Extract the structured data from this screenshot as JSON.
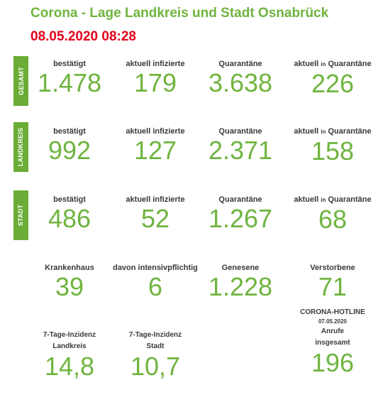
{
  "header": {
    "title": "Corona - Lage Landkreis und Stadt Osnabrück",
    "date": "08.05.2020 08:28"
  },
  "rows": [
    {
      "tab": "GESAMT",
      "cells": [
        {
          "label": "bestätigt",
          "value": "1.478"
        },
        {
          "label": "aktuell infizierte",
          "value": "179"
        },
        {
          "label": "Quarantäne",
          "value": "3.638"
        },
        {
          "label_a": "aktuell",
          "label_b": "in",
          "label_c": "Quarantäne",
          "value": "226"
        }
      ]
    },
    {
      "tab": "LANDKREIS",
      "cells": [
        {
          "label": "bestätigt",
          "value": "992"
        },
        {
          "label": "aktuell infizierte",
          "value": "127"
        },
        {
          "label": "Quarantäne",
          "value": "2.371"
        },
        {
          "label_a": "aktuell",
          "label_b": "in",
          "label_c": "Quarantäne",
          "value": "158"
        }
      ]
    },
    {
      "tab": "STADT",
      "cells": [
        {
          "label": "bestätigt",
          "value": "486"
        },
        {
          "label": "aktuell infizierte",
          "value": "52"
        },
        {
          "label": "Quarantäne",
          "value": "1.267"
        },
        {
          "label_a": "aktuell",
          "label_b": "in",
          "label_c": "Quarantäne",
          "value": "68"
        }
      ]
    }
  ],
  "summary": [
    {
      "label": "Krankenhaus",
      "value": "39"
    },
    {
      "label": "davon intensivpflichtig",
      "value": "6"
    },
    {
      "label": "Genesene",
      "value": "1.228"
    },
    {
      "label": "Verstorbene",
      "value": "71"
    }
  ],
  "incidence": [
    {
      "line1": "7-Tage-Inzidenz",
      "line2": "Landkreis",
      "value": "14,8"
    },
    {
      "line1": "7-Tage-Inzidenz",
      "line2": "Stadt",
      "value": "10,7"
    }
  ],
  "hotline": {
    "line1": "CORONA-HOTLINE",
    "line2": "07.05.2020",
    "line3": "Anrufe",
    "line4": "insgesamt",
    "value": "196"
  },
  "colors": {
    "accent_green": "#6fb43f",
    "tab_green": "#6aac35",
    "date_red": "#e3001b",
    "label_gray": "#3a3a3a"
  }
}
